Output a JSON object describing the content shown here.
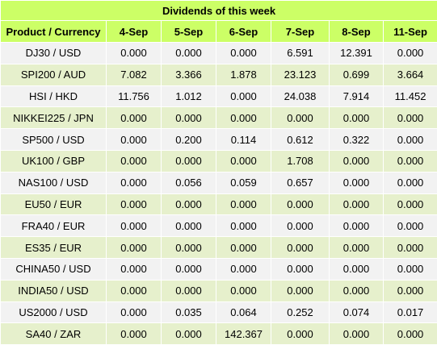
{
  "title": "Dividends of this week",
  "columns": [
    "Product / Currency",
    "4-Sep",
    "5-Sep",
    "6-Sep",
    "7-Sep",
    "8-Sep",
    "11-Sep"
  ],
  "rows": [
    [
      "DJ30 / USD",
      "0.000",
      "0.000",
      "0.000",
      "6.591",
      "12.391",
      "0.000"
    ],
    [
      "SPI200 / AUD",
      "7.082",
      "3.366",
      "1.878",
      "23.123",
      "0.699",
      "3.664"
    ],
    [
      "HSI / HKD",
      "11.756",
      "1.012",
      "0.000",
      "24.038",
      "7.914",
      "11.452"
    ],
    [
      "NIKKEI225 / JPN",
      "0.000",
      "0.000",
      "0.000",
      "0.000",
      "0.000",
      "0.000"
    ],
    [
      "SP500 / USD",
      "0.000",
      "0.200",
      "0.114",
      "0.612",
      "0.322",
      "0.000"
    ],
    [
      "UK100 / GBP",
      "0.000",
      "0.000",
      "0.000",
      "1.708",
      "0.000",
      "0.000"
    ],
    [
      "NAS100 / USD",
      "0.000",
      "0.056",
      "0.059",
      "0.657",
      "0.000",
      "0.000"
    ],
    [
      "EU50 / EUR",
      "0.000",
      "0.000",
      "0.000",
      "0.000",
      "0.000",
      "0.000"
    ],
    [
      "FRA40 / EUR",
      "0.000",
      "0.000",
      "0.000",
      "0.000",
      "0.000",
      "0.000"
    ],
    [
      "ES35 / EUR",
      "0.000",
      "0.000",
      "0.000",
      "0.000",
      "0.000",
      "0.000"
    ],
    [
      "CHINA50 / USD",
      "0.000",
      "0.000",
      "0.000",
      "0.000",
      "0.000",
      "0.000"
    ],
    [
      "INDIA50 / USD",
      "0.000",
      "0.000",
      "0.000",
      "0.000",
      "0.000",
      "0.000"
    ],
    [
      "US2000 / USD",
      "0.000",
      "0.035",
      "0.064",
      "0.252",
      "0.074",
      "0.017"
    ],
    [
      "SA40 / ZAR",
      "0.000",
      "0.000",
      "142.367",
      "0.000",
      "0.000",
      "0.000"
    ]
  ],
  "colors": {
    "header_bg": "#ccff66",
    "row_odd_bg": "#f2f2f2",
    "row_even_bg": "#e6f0cc"
  }
}
